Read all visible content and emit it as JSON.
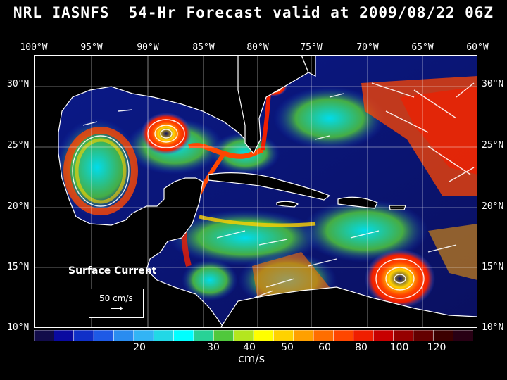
{
  "title": "NRL IASNFS  54-Hr Forecast valid at 2009/08/22 06Z",
  "lon_labels": [
    "100°W",
    "95°W",
    "90°W",
    "85°W",
    "80°W",
    "75°W",
    "70°W",
    "65°W",
    "60°W"
  ],
  "lat_labels": [
    "30°N",
    "25°N",
    "20°N",
    "15°N",
    "10°N"
  ],
  "field_label": "Surface Current",
  "reference_vector": "50 cm/s",
  "colorbar": {
    "ticks": [
      "20",
      "30",
      "40",
      "50",
      "60",
      "80",
      "100",
      "120"
    ],
    "units": "cm/s",
    "colors": [
      "#120c4a",
      "#0a0aa0",
      "#1030c8",
      "#1e5ae6",
      "#2a8cf0",
      "#32b4f5",
      "#22d8e6",
      "#00ffff",
      "#28d296",
      "#50c83c",
      "#b4e61e",
      "#ffff00",
      "#ffd200",
      "#ffa000",
      "#ff6e00",
      "#ff4600",
      "#f01e00",
      "#c80000",
      "#960000",
      "#640000",
      "#3c0000",
      "#280014"
    ]
  },
  "colors": {
    "background": "#000000",
    "ocean_calm": "#0a1060",
    "land": "#000000",
    "coastline": "#ffffff",
    "text": "#ffffff"
  }
}
